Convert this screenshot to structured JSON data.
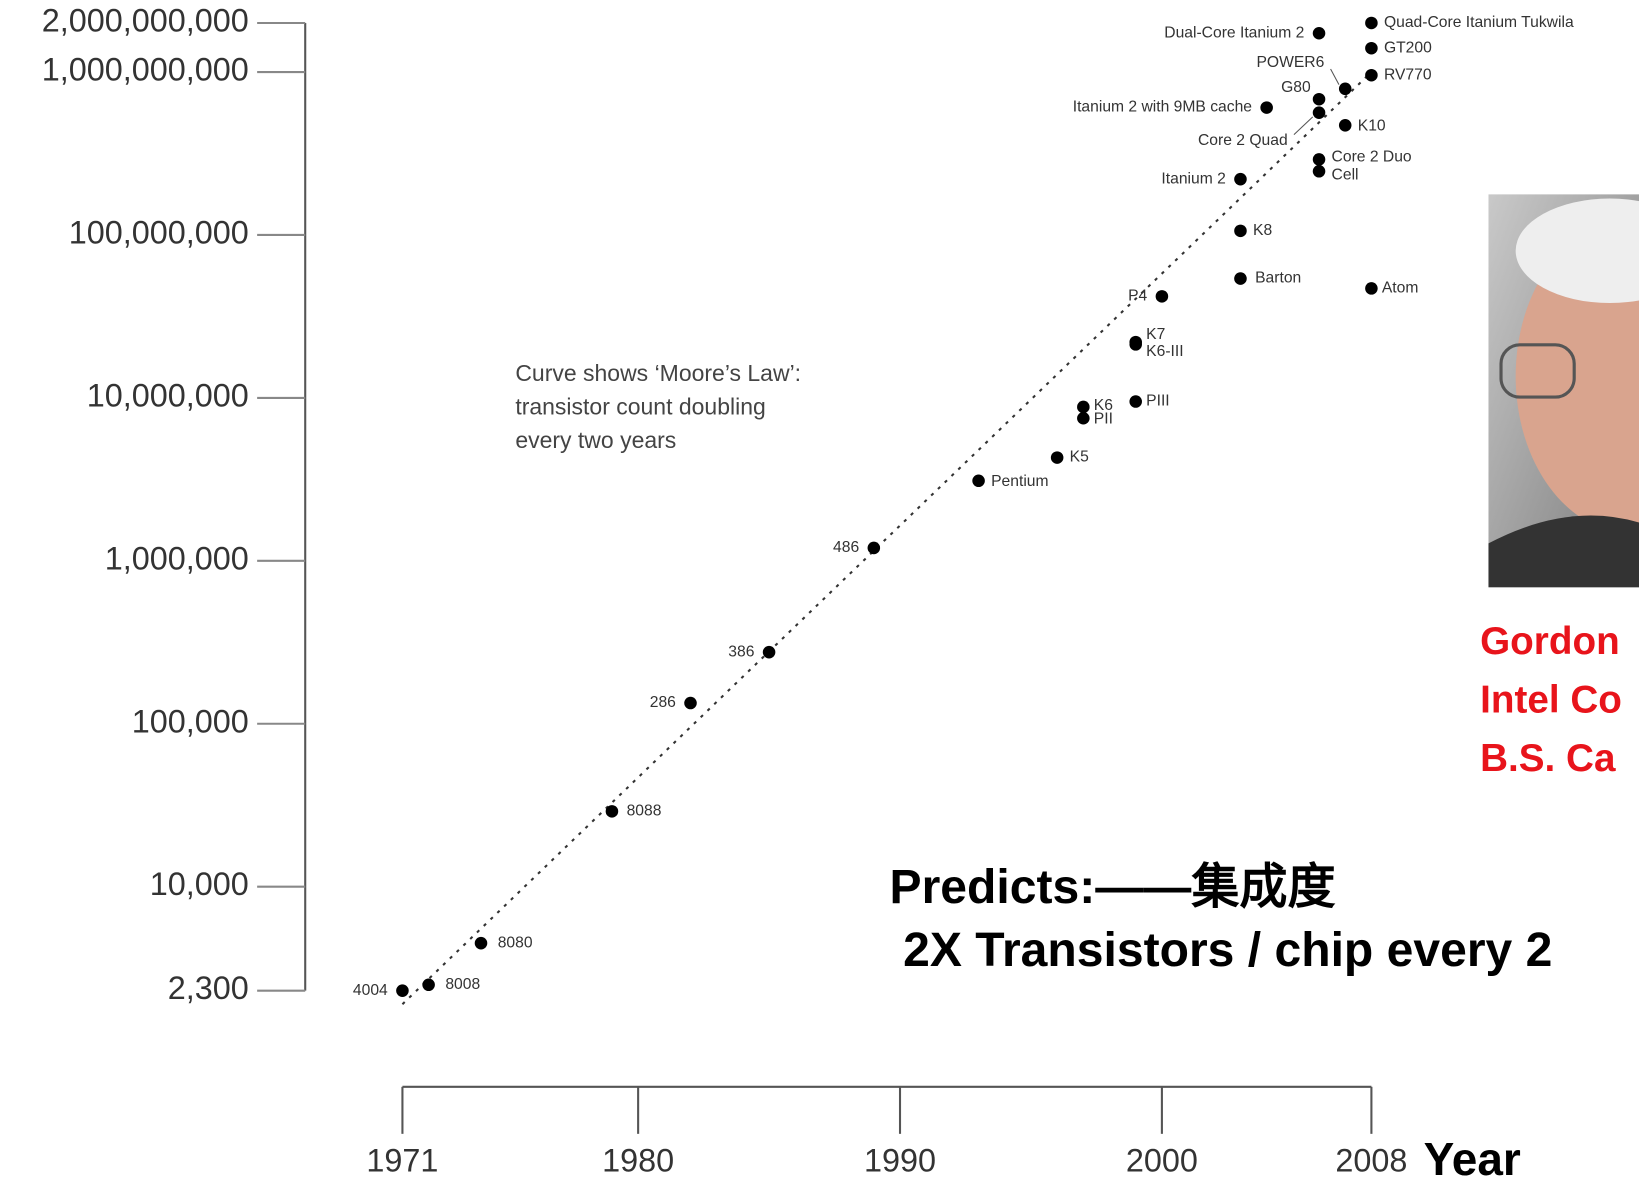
{
  "chart_data": {
    "type": "scatter",
    "log_y": true,
    "color": "#000000",
    "xlabel": "Year",
    "xlim": [
      1971,
      2008
    ],
    "xticks": [
      1971,
      1980,
      1990,
      2000,
      2008
    ],
    "ylim": [
      2300,
      2000000000
    ],
    "yticks": [
      {
        "value": 2300,
        "label": "2,300"
      },
      {
        "value": 10000,
        "label": "10,000"
      },
      {
        "value": 100000,
        "label": "100,000"
      },
      {
        "value": 1000000,
        "label": "1,000,000"
      },
      {
        "value": 10000000,
        "label": "10,000,000"
      },
      {
        "value": 100000000,
        "label": "100,000,000"
      },
      {
        "value": 1000000000,
        "label": "1,000,000,000"
      },
      {
        "value": 2000000000,
        "label": "2,000,000,000"
      }
    ],
    "labels": [
      "4004",
      "8008",
      "8080",
      "8088",
      "286",
      "386",
      "486",
      "Pentium",
      "K5",
      "K6",
      "PII",
      "PIII",
      "K7",
      "K6-III",
      "P4",
      "Barton",
      "K8",
      "Itanium 2",
      "Atom",
      "Cell",
      "Core 2 Duo",
      "K10",
      "Core 2 Quad",
      "Itanium 2 with 9MB cache",
      "G80",
      "POWER6",
      "RV770",
      "GT200",
      "Quad-Core Itanium Tukwila",
      "Dual-Core Itanium 2"
    ],
    "x": [
      1971,
      1972,
      1974,
      1979,
      1982,
      1985,
      1989,
      1993,
      1996,
      1997,
      1997,
      1999,
      1999,
      1999,
      2000,
      2003,
      2003,
      2003,
      2008,
      2006,
      2006,
      2007,
      2006,
      2004,
      2006,
      2007,
      2008,
      2008,
      2008,
      2006
    ],
    "values": [
      2300,
      2500,
      4500,
      29000,
      134000,
      275000,
      1200000,
      3100000,
      4300000,
      8800000,
      7500000,
      9500000,
      22000000,
      21300000,
      42000000,
      54000000,
      106000000,
      220000000,
      47000000,
      246000000,
      291000000,
      471000000,
      563000000,
      605000000,
      681000000,
      789000000,
      956000000,
      1400000000,
      2000000000,
      1730000000
    ],
    "trend": {
      "x": [
        1971,
        2008
      ],
      "values": [
        1900,
        1000000000
      ]
    },
    "annotation": [
      "Curve shows ‘Moore’s Law’:",
      "transistor count doubling",
      "every two years"
    ],
    "caption": [
      "Gordon",
      "Intel Co",
      "B.S. Ca"
    ],
    "prediction": [
      "Predicts:——集成度",
      "2X Transistors / chip every 2"
    ]
  }
}
